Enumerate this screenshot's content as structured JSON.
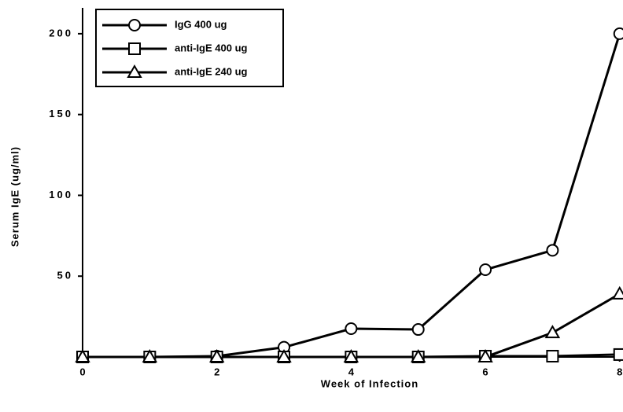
{
  "chart_data": {
    "type": "line",
    "xlabel": "Week of Infection",
    "ylabel": "Serum IgE   (ug/ml)",
    "x": [
      0,
      1,
      2,
      3,
      4,
      5,
      6,
      7,
      8
    ],
    "series": [
      {
        "name": "IgG 400 ug",
        "color": "#000000",
        "marker": "circle",
        "values": [
          0,
          0,
          0.5,
          6,
          17.5,
          17,
          54,
          66,
          200
        ]
      },
      {
        "name": "anti-IgE 400 ug",
        "color": "#000000",
        "marker": "square",
        "values": [
          0,
          0,
          0,
          0,
          0,
          0,
          0.5,
          0.5,
          1.5
        ]
      },
      {
        "name": "anti-IgE 240 ug",
        "color": "#000000",
        "marker": "triangle",
        "values": [
          0,
          0,
          0,
          0,
          0,
          0,
          0,
          15,
          39
        ]
      }
    ],
    "xlim": [
      0,
      8.05
    ],
    "xticks": [
      0,
      2,
      4,
      6,
      8
    ],
    "ylim": [
      0,
      216
    ],
    "yticks": [
      50,
      100,
      150,
      200
    ],
    "legend": "upper left"
  }
}
